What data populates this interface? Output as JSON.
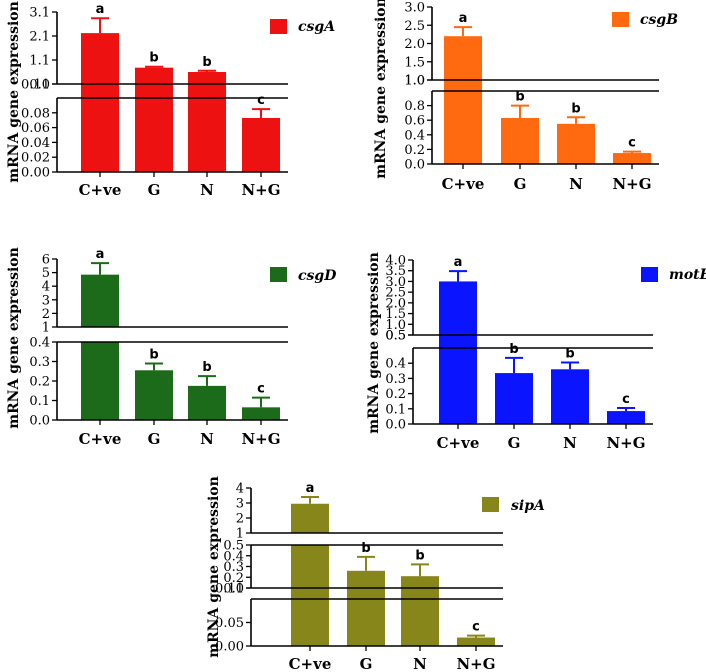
{
  "chart_data": [
    {
      "type": "bar",
      "gene": "csgA",
      "color": "#ee1111",
      "ylabel": "mRNA gene expression",
      "categories": [
        "C+ve",
        "G",
        "N",
        "N+G"
      ],
      "values": [
        2.22,
        0.78,
        0.6,
        0.073
      ],
      "errors": [
        0.62,
        0.04,
        0.05,
        0.012
      ],
      "letters": [
        "a",
        "b",
        "b",
        "c"
      ],
      "segments": [
        {
          "range": [
            0.1,
            3.1
          ],
          "ticks": [
            "0.1",
            "1.1",
            "2.1",
            "3.1"
          ]
        },
        {
          "range": [
            0,
            0.1
          ],
          "ticks": [
            "0.00",
            "0.02",
            "0.04",
            "0.06",
            "0.08",
            "0.10"
          ]
        }
      ]
    },
    {
      "type": "bar",
      "gene": "csgB",
      "color": "#ff6a10",
      "ylabel": "mRNA gene expression",
      "categories": [
        "C+ve",
        "G",
        "N",
        "N+G"
      ],
      "values": [
        2.2,
        0.63,
        0.55,
        0.15
      ],
      "errors": [
        0.25,
        0.17,
        0.09,
        0.02
      ],
      "letters": [
        "a",
        "b",
        "b",
        "c"
      ],
      "segments": [
        {
          "range": [
            1.0,
            3.0
          ],
          "ticks": [
            "1.0",
            "1.5",
            "2.0",
            "2.5",
            "3.0"
          ]
        },
        {
          "range": [
            0,
            1.0
          ],
          "ticks": [
            "0.0",
            "0.2",
            "0.4",
            "0.6",
            "0.8",
            "1.0"
          ]
        }
      ]
    },
    {
      "type": "bar",
      "gene": "csgD",
      "color": "#1b6b1b",
      "ylabel": "mRNA gene expression",
      "categories": [
        "C+ve",
        "G",
        "N",
        "N+G"
      ],
      "values": [
        4.85,
        0.255,
        0.175,
        0.065
      ],
      "errors": [
        0.85,
        0.035,
        0.05,
        0.05
      ],
      "letters": [
        "a",
        "b",
        "b",
        "c"
      ],
      "segments": [
        {
          "range": [
            1,
            6
          ],
          "ticks": [
            "1",
            "2",
            "3",
            "4",
            "5",
            "6"
          ]
        },
        {
          "range": [
            0,
            0.4
          ],
          "ticks": [
            "0.0",
            "0.1",
            "0.2",
            "0.3",
            "0.4"
          ]
        }
      ]
    },
    {
      "type": "bar",
      "gene": "motB",
      "color": "#0a14ff",
      "ylabel": "mRNA gene expression",
      "categories": [
        "C+ve",
        "G",
        "N",
        "N+G"
      ],
      "values": [
        3.0,
        0.335,
        0.36,
        0.085
      ],
      "errors": [
        0.48,
        0.1,
        0.045,
        0.02
      ],
      "letters": [
        "a",
        "b",
        "b",
        "c"
      ],
      "segments": [
        {
          "range": [
            0.5,
            4.0
          ],
          "ticks": [
            "0.5",
            "1.0",
            "1.5",
            "2.0",
            "2.5",
            "3.0",
            "3.5",
            "4.0"
          ]
        },
        {
          "range": [
            0,
            0.5
          ],
          "ticks": [
            "0.0",
            "0.1",
            "0.2",
            "0.3",
            "0.4",
            "0.5"
          ]
        }
      ]
    },
    {
      "type": "bar",
      "gene": "sipA",
      "color": "#87861a",
      "ylabel": "mRNA gene expression",
      "categories": [
        "C+ve",
        "G",
        "N",
        "N+G"
      ],
      "values": [
        2.95,
        0.26,
        0.21,
        0.018
      ],
      "errors": [
        0.45,
        0.13,
        0.11,
        0.004
      ],
      "letters": [
        "a",
        "b",
        "b",
        "c"
      ],
      "segments": [
        {
          "range": [
            1,
            4
          ],
          "ticks": [
            "1",
            "2",
            "3",
            "4"
          ]
        },
        {
          "range": [
            0.1,
            0.5
          ],
          "ticks": [
            "0.1",
            "0.2",
            "0.3",
            "0.4",
            "0.5"
          ]
        },
        {
          "range": [
            0,
            0.1
          ],
          "ticks": [
            "0.00",
            "0.05",
            "0.10"
          ]
        }
      ]
    }
  ]
}
